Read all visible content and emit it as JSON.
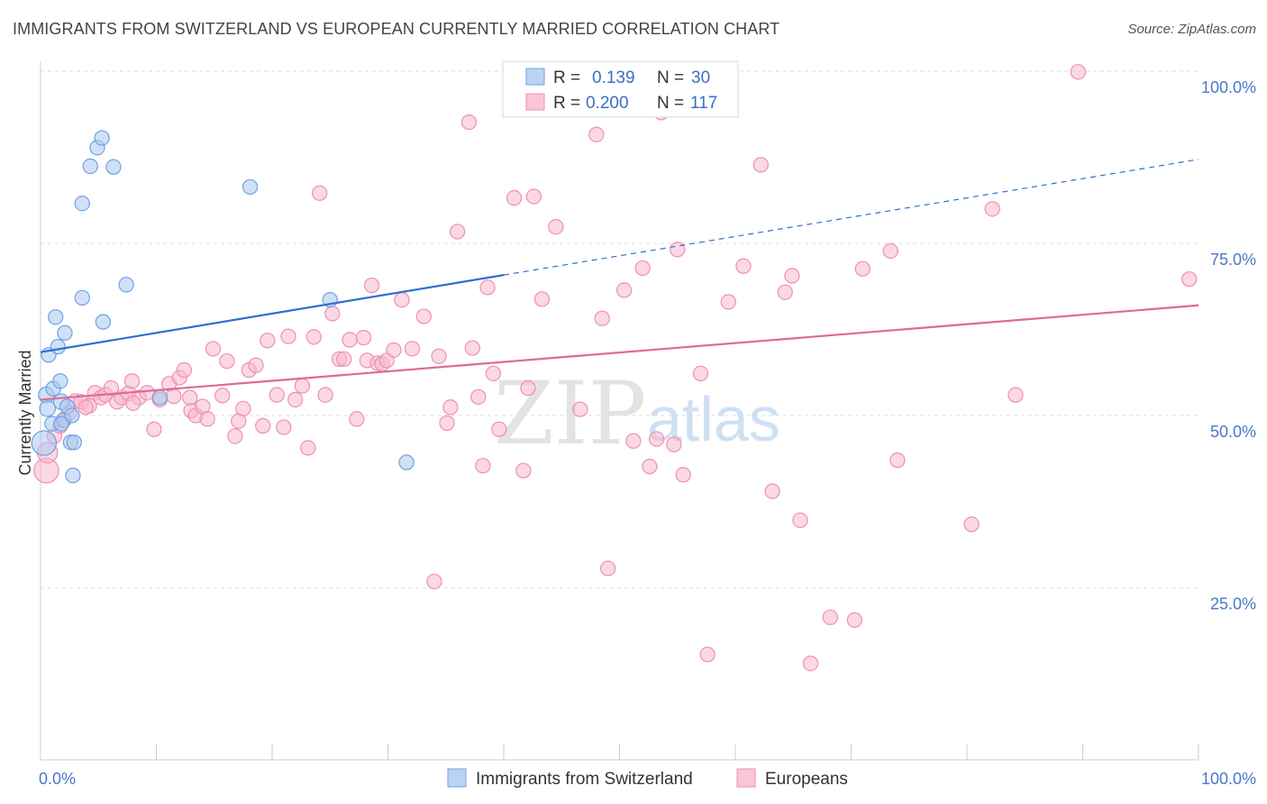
{
  "header": {
    "title": "IMMIGRANTS FROM SWITZERLAND VS EUROPEAN CURRENTLY MARRIED CORRELATION CHART",
    "source": "Source: ZipAtlas.com"
  },
  "watermark": {
    "zip": "ZIP",
    "atlas": "atlas"
  },
  "legend": {
    "items": [
      {
        "r_label": "R =",
        "r_value": "0.139",
        "n_label": "N =",
        "n_value": "30",
        "color": "#aac8f0"
      },
      {
        "r_label": "R =",
        "r_value": "0.200",
        "n_label": "N =",
        "n_value": "117",
        "color": "#f7b8cc"
      }
    ]
  },
  "bottom_legend": {
    "items": [
      {
        "label": "Immigrants from Switzerland",
        "color": "#aac8f0"
      },
      {
        "label": "Europeans",
        "color": "#f7b8cc"
      }
    ]
  },
  "chart_data": {
    "type": "scatter",
    "xlabel": "",
    "ylabel": "Currently Married",
    "xlim": [
      0,
      100
    ],
    "ylim": [
      0,
      100
    ],
    "x_tick_labels": [
      "0.0%",
      "100.0%"
    ],
    "y_ticks": [
      25,
      50,
      75,
      100
    ],
    "y_tick_labels": [
      "25.0%",
      "50.0%",
      "75.0%",
      "100.0%"
    ],
    "grid": true,
    "legend_position": "top-center",
    "series": [
      {
        "name": "Immigrants from Switzerland",
        "color": "#6fa0e6",
        "fill": "#aac8f0",
        "trend": {
          "x0": 0,
          "y0": 59.2,
          "x1": 40,
          "y1": 70.4,
          "dashed_to_x": 100,
          "dashed_to_y": 87.2,
          "color": "#2f6fcf"
        },
        "points": [
          [
            0.3,
            46.0,
            22
          ],
          [
            0.5,
            53.0,
            14
          ],
          [
            0.6,
            51.0,
            14
          ],
          [
            0.7,
            58.8,
            13
          ],
          [
            1.0,
            48.8,
            13
          ],
          [
            1.1,
            53.9,
            13
          ],
          [
            1.3,
            64.3,
            13
          ],
          [
            1.5,
            60.0,
            13
          ],
          [
            1.7,
            55.0,
            13
          ],
          [
            1.8,
            52.0,
            14
          ],
          [
            2.0,
            49.3,
            13
          ],
          [
            2.1,
            62.0,
            13
          ],
          [
            2.3,
            51.3,
            13
          ],
          [
            2.6,
            46.1,
            13
          ],
          [
            2.7,
            50.0,
            13
          ],
          [
            2.9,
            46.1,
            13
          ],
          [
            2.8,
            41.3,
            13
          ],
          [
            3.6,
            80.8,
            13
          ],
          [
            3.6,
            67.1,
            13
          ],
          [
            4.3,
            86.2,
            13
          ],
          [
            4.9,
            88.9,
            13
          ],
          [
            5.3,
            90.3,
            13
          ],
          [
            5.4,
            63.6,
            13
          ],
          [
            6.3,
            86.1,
            13
          ],
          [
            7.4,
            69.0,
            13
          ],
          [
            10.3,
            52.6,
            13
          ],
          [
            18.1,
            83.2,
            13
          ],
          [
            25.0,
            66.8,
            13
          ],
          [
            31.6,
            43.2,
            13
          ],
          [
            1.8,
            48.8,
            13
          ]
        ]
      },
      {
        "name": "Europeans",
        "color": "#ee90b0",
        "fill": "#f7b8cc",
        "trend": {
          "x0": 0,
          "y0": 52.3,
          "x1": 100,
          "y1": 66.0,
          "color": "#e0699a"
        },
        "points": [
          [
            0.5,
            42.0,
            22
          ],
          [
            0.6,
            44.6,
            18
          ],
          [
            1.2,
            47.0,
            13
          ],
          [
            1.7,
            48.5,
            13
          ],
          [
            2.0,
            49.4,
            13
          ],
          [
            2.5,
            50.4,
            13
          ],
          [
            3.0,
            52.1,
            13
          ],
          [
            3.5,
            52.0,
            13
          ],
          [
            4.2,
            51.4,
            13
          ],
          [
            4.7,
            53.3,
            13
          ],
          [
            5.2,
            52.6,
            13
          ],
          [
            5.6,
            53.0,
            13
          ],
          [
            6.1,
            54.0,
            13
          ],
          [
            6.6,
            52.0,
            13
          ],
          [
            7.0,
            52.6,
            13
          ],
          [
            7.6,
            53.2,
            13
          ],
          [
            7.9,
            55.0,
            13
          ],
          [
            8.5,
            52.6,
            13
          ],
          [
            9.2,
            53.3,
            13
          ],
          [
            9.8,
            48.0,
            13
          ],
          [
            10.3,
            52.3,
            13
          ],
          [
            11.1,
            54.6,
            13
          ],
          [
            11.5,
            52.8,
            13
          ],
          [
            12.0,
            55.5,
            13
          ],
          [
            12.4,
            56.6,
            13
          ],
          [
            13.0,
            50.7,
            13
          ],
          [
            13.4,
            50.0,
            13
          ],
          [
            14.0,
            51.3,
            13
          ],
          [
            14.4,
            49.5,
            13
          ],
          [
            14.9,
            59.7,
            13
          ],
          [
            15.7,
            52.9,
            13
          ],
          [
            16.1,
            57.9,
            13
          ],
          [
            16.8,
            47.0,
            13
          ],
          [
            17.1,
            49.2,
            13
          ],
          [
            17.5,
            51.0,
            13
          ],
          [
            18.0,
            56.6,
            13
          ],
          [
            18.6,
            57.3,
            13
          ],
          [
            19.2,
            48.5,
            13
          ],
          [
            19.6,
            60.9,
            13
          ],
          [
            20.4,
            53.0,
            13
          ],
          [
            21.0,
            48.3,
            13
          ],
          [
            21.4,
            61.5,
            13
          ],
          [
            22.0,
            52.3,
            13
          ],
          [
            22.6,
            54.3,
            13
          ],
          [
            23.1,
            45.3,
            13
          ],
          [
            23.6,
            61.4,
            13
          ],
          [
            24.1,
            82.3,
            13
          ],
          [
            24.6,
            53.0,
            13
          ],
          [
            25.2,
            64.8,
            13
          ],
          [
            25.8,
            58.2,
            13
          ],
          [
            26.2,
            58.2,
            13
          ],
          [
            26.7,
            61.0,
            13
          ],
          [
            27.3,
            49.5,
            13
          ],
          [
            27.9,
            61.3,
            13
          ],
          [
            28.2,
            58.0,
            13
          ],
          [
            28.6,
            68.9,
            13
          ],
          [
            29.1,
            57.6,
            13
          ],
          [
            29.5,
            57.5,
            13
          ],
          [
            29.9,
            58.0,
            13
          ],
          [
            30.5,
            59.5,
            13
          ],
          [
            31.2,
            66.8,
            13
          ],
          [
            32.1,
            59.7,
            13
          ],
          [
            33.1,
            64.4,
            13
          ],
          [
            34.0,
            25.9,
            13
          ],
          [
            34.4,
            58.6,
            13
          ],
          [
            35.1,
            48.9,
            13
          ],
          [
            35.4,
            51.2,
            13
          ],
          [
            36.0,
            76.7,
            13
          ],
          [
            37.0,
            92.6,
            13
          ],
          [
            37.3,
            59.8,
            13
          ],
          [
            37.8,
            52.7,
            13
          ],
          [
            38.2,
            42.7,
            13
          ],
          [
            38.6,
            68.6,
            13
          ],
          [
            39.1,
            56.1,
            13
          ],
          [
            39.6,
            48.0,
            13
          ],
          [
            40.9,
            81.6,
            13
          ],
          [
            41.7,
            42.0,
            13
          ],
          [
            42.1,
            54.0,
            13
          ],
          [
            42.6,
            81.8,
            13
          ],
          [
            43.3,
            66.9,
            13
          ],
          [
            44.5,
            77.4,
            13
          ],
          [
            46.6,
            50.9,
            13
          ],
          [
            48.0,
            90.8,
            13
          ],
          [
            49.0,
            27.8,
            13
          ],
          [
            50.4,
            68.2,
            13
          ],
          [
            51.2,
            46.3,
            13
          ],
          [
            52.0,
            71.4,
            13
          ],
          [
            52.6,
            42.6,
            13
          ],
          [
            53.2,
            46.6,
            13
          ],
          [
            53.6,
            94.0,
            13
          ],
          [
            54.7,
            45.8,
            13
          ],
          [
            55.0,
            74.1,
            13
          ],
          [
            55.5,
            41.4,
            13
          ],
          [
            57.0,
            56.1,
            13
          ],
          [
            57.6,
            15.3,
            13
          ],
          [
            59.4,
            66.5,
            13
          ],
          [
            60.7,
            71.7,
            13
          ],
          [
            62.2,
            86.4,
            13
          ],
          [
            63.2,
            39.0,
            13
          ],
          [
            64.3,
            67.9,
            13
          ],
          [
            64.9,
            70.3,
            13
          ],
          [
            65.6,
            34.8,
            13
          ],
          [
            66.5,
            14.0,
            13
          ],
          [
            68.2,
            20.7,
            13
          ],
          [
            70.3,
            20.3,
            13
          ],
          [
            71.0,
            71.3,
            13
          ],
          [
            73.4,
            73.9,
            13
          ],
          [
            74.0,
            43.5,
            13
          ],
          [
            80.4,
            34.2,
            13
          ],
          [
            82.2,
            80.0,
            13
          ],
          [
            84.2,
            53.0,
            13
          ],
          [
            89.6,
            99.9,
            13
          ],
          [
            99.2,
            69.8,
            13
          ],
          [
            48.5,
            64.1,
            13
          ],
          [
            12.9,
            52.6,
            13
          ],
          [
            3.9,
            51.2,
            13
          ],
          [
            8.0,
            51.8,
            13
          ]
        ]
      }
    ]
  }
}
